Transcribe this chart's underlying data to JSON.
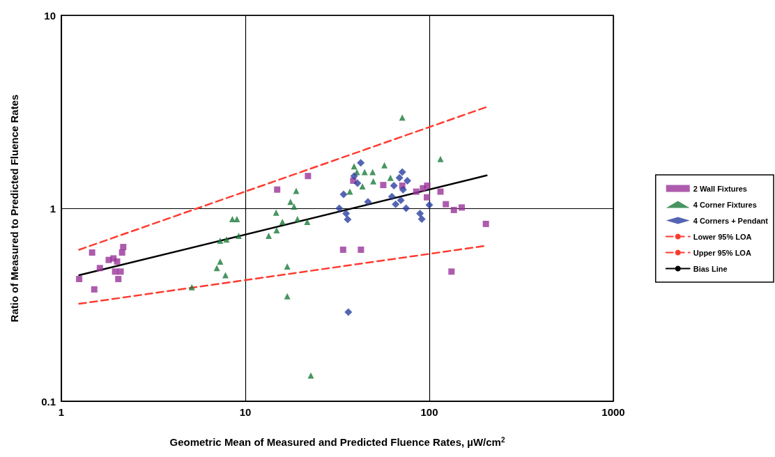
{
  "chart_data": {
    "type": "scatter",
    "xlabel": "Geometric Mean of Measured and Predicted Fluence Rates, µW/cm$^{2}$",
    "ylabel": "Ratio of Measured to Predicted Fluence Rates",
    "log": "xy",
    "xlim": [
      1,
      1000
    ],
    "ylim": [
      0.1,
      10
    ],
    "xticks": [
      1,
      10,
      100,
      1000
    ],
    "yticks": [
      0.1,
      1,
      10
    ],
    "grid": true,
    "legend": "right",
    "series": [
      {
        "name": "2 Wall Fixtures",
        "color": "#993399",
        "marker": "square",
        "x": [
          1.25,
          1.47,
          1.51,
          1.62,
          1.81,
          1.92,
          2.01,
          2.1,
          2.17,
          2.14,
          2.04,
          1.96,
          14.9,
          21.9,
          38.6,
          56.2,
          71.3,
          84.9,
          92.3,
          97.4,
          97,
          115,
          123,
          136,
          150,
          203,
          132,
          34,
          42.5
        ],
        "values": [
          0.43,
          0.59,
          0.38,
          0.49,
          0.54,
          0.55,
          0.53,
          0.47,
          0.63,
          0.59,
          0.43,
          0.47,
          1.25,
          1.47,
          1.39,
          1.32,
          1.31,
          1.22,
          1.27,
          1.31,
          1.14,
          1.22,
          1.05,
          0.98,
          1.01,
          0.83,
          0.47,
          0.61,
          0.61
        ]
      },
      {
        "name": "4 Corner Fixtures",
        "color": "#1a7a3a",
        "marker": "triangle",
        "x": [
          5.12,
          7.0,
          7.3,
          7.8,
          7.3,
          7.9,
          8.5,
          9.0,
          9.2,
          16.9,
          16.9,
          22.7,
          14.7,
          17.6,
          18.4,
          18.9,
          37,
          39,
          40.4,
          44.5,
          49.2,
          49.6,
          43.3,
          57,
          61.5,
          71.3,
          115,
          13.4,
          14.8,
          15.9,
          19.2,
          21.7
        ],
        "values": [
          0.39,
          0.49,
          0.53,
          0.45,
          0.68,
          0.69,
          0.88,
          0.88,
          0.72,
          0.5,
          0.35,
          0.136,
          0.95,
          1.08,
          1.02,
          1.23,
          1.22,
          1.65,
          1.54,
          1.54,
          1.54,
          1.38,
          1.3,
          1.67,
          1.44,
          2.95,
          1.8,
          0.72,
          0.77,
          0.85,
          0.88,
          0.85
        ]
      },
      {
        "name": "4 Corners + Pendant",
        "color": "#2b3fa0",
        "marker": "diamond",
        "x": [
          42.4,
          39,
          40.7,
          34.2,
          32.4,
          46.4,
          62.6,
          64.2,
          71.3,
          68.8,
          76,
          72,
          70,
          65.6,
          74.8,
          89,
          100,
          35.3,
          36,
          91,
          36.3
        ],
        "values": [
          1.72,
          1.47,
          1.35,
          1.18,
          1.0,
          1.08,
          1.15,
          1.31,
          1.54,
          1.44,
          1.39,
          1.25,
          1.1,
          1.05,
          1.0,
          0.94,
          1.04,
          0.94,
          0.875,
          0.88,
          0.29
        ]
      },
      {
        "name": "Lower 95% LOA",
        "type": "line",
        "color": "#ff3b30",
        "line_style": "dashed",
        "marker": "none",
        "x": [
          1.25,
          205
        ],
        "values": [
          0.32,
          0.64
        ]
      },
      {
        "name": "Upper 95% LOA",
        "type": "line",
        "color": "#ff3b30",
        "line_style": "dashed",
        "marker": "none",
        "x": [
          1.25,
          205
        ],
        "values": [
          0.61,
          3.35
        ]
      },
      {
        "name": "Bias Line",
        "type": "line",
        "color": "#000000",
        "line_style": "solid",
        "marker": "none",
        "x": [
          1.25,
          205
        ],
        "values": [
          0.45,
          1.48
        ]
      }
    ]
  }
}
